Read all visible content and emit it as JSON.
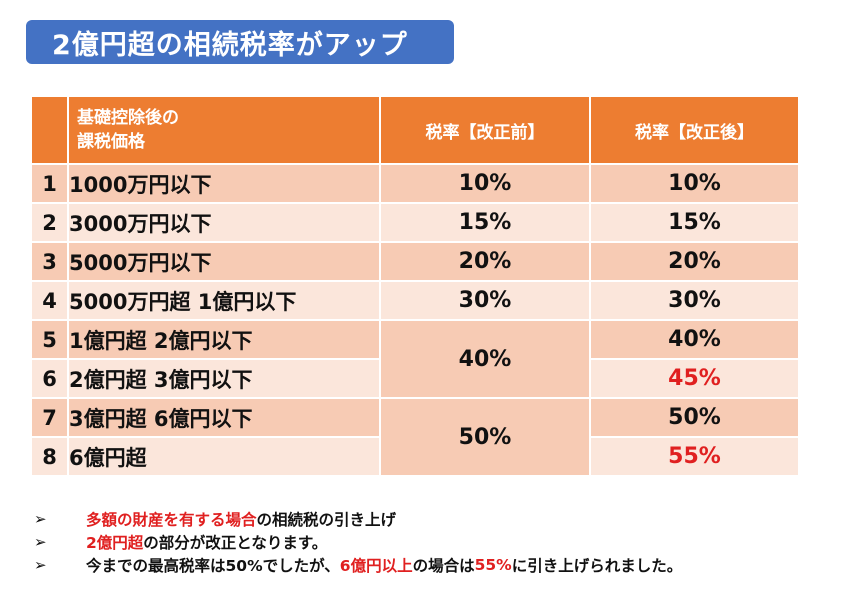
{
  "title": "2億円超の相続税率がアップ",
  "table": {
    "headers": {
      "number": "",
      "category_line1": "基礎控除後の",
      "category_line2": "課税価格",
      "before": "税率【改正前】",
      "after": "税率【改正後】"
    },
    "rows": [
      {
        "no": "1",
        "category": "1000万円以下",
        "before": "10%",
        "after": "10%"
      },
      {
        "no": "2",
        "category": "3000万円以下",
        "before": "15%",
        "after": "15%"
      },
      {
        "no": "3",
        "category": "5000万円以下",
        "before": "20%",
        "after": "20%"
      },
      {
        "no": "4",
        "category": "5000万円超 1億円以下",
        "before": "30%",
        "after": "30%"
      },
      {
        "no": "5",
        "category": "1億円超 2億円以下",
        "before": "40%",
        "after": "40%"
      },
      {
        "no": "6",
        "category": "2億円超 3億円以下",
        "before": "",
        "after": "45%"
      },
      {
        "no": "7",
        "category": "3億円超 6億円以下",
        "before": "50%",
        "after": "50%"
      },
      {
        "no": "8",
        "category": "6億円超",
        "before": "",
        "after": "55%"
      }
    ]
  },
  "notes": {
    "bullet": "➢",
    "n1": {
      "red": "多額の財産を有する場合",
      "rest": "の相続税の引き上げ"
    },
    "n2": {
      "red": "2億円超",
      "rest": "の部分が改正となります。"
    },
    "n3": {
      "p1": "今までの最高税率は50%でしたが、",
      "red1": "6億円以上",
      "p2": "の場合は",
      "red2": "55%",
      "p3": "に引き上げられました。"
    }
  },
  "colors": {
    "banner": "#4472c4",
    "header": "#ed7d31",
    "row_dark": "#f7cbb4",
    "row_light": "#fbe6db",
    "highlight_red": "#e02020"
  }
}
